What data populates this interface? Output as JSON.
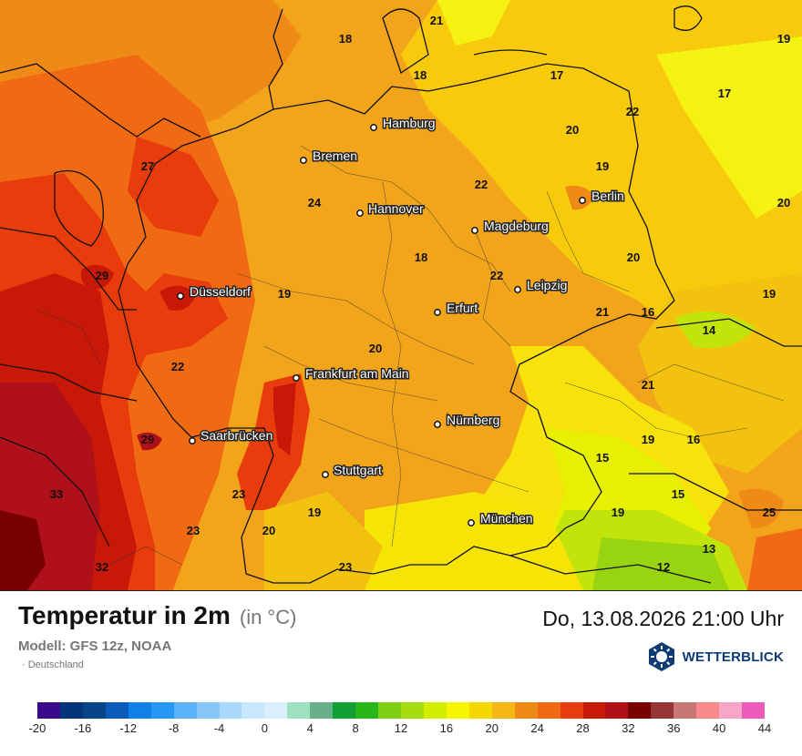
{
  "title": "Temperatur in 2m",
  "unit": "(in °C)",
  "model": "Modell: GFS 12z, NOAA",
  "region": "Deutschland",
  "datetime": "Do, 13.08.2026 21:00 Uhr",
  "brand": "WETTERBLICK",
  "cities": [
    {
      "name": "Hamburg"
    },
    {
      "name": "Bremen"
    },
    {
      "name": "Hannover"
    },
    {
      "name": "Berlin"
    },
    {
      "name": "Magdeburg"
    },
    {
      "name": "Leipzig"
    },
    {
      "name": "Düsseldorf"
    },
    {
      "name": "Erfurt"
    },
    {
      "name": "Frankfurt am Main"
    },
    {
      "name": "Nürnberg"
    },
    {
      "name": "Saarbrücken"
    },
    {
      "name": "Stuttgart"
    },
    {
      "name": "München"
    }
  ],
  "temperatures": [
    "21",
    "18",
    "19",
    "18",
    "17",
    "17",
    "22",
    "20",
    "19",
    "27",
    "24",
    "22",
    "20",
    "29",
    "19",
    "18",
    "22",
    "20",
    "19",
    "21",
    "16",
    "14",
    "20",
    "22",
    "21",
    "29",
    "19",
    "16",
    "15",
    "33",
    "23",
    "19",
    "15",
    "25",
    "23",
    "20",
    "19",
    "13",
    "32",
    "23",
    "12"
  ],
  "scale": {
    "colors": [
      "#3a0a8c",
      "#06347a",
      "#0a4488",
      "#0a5cb8",
      "#1180e6",
      "#2797f5",
      "#5cb2f7",
      "#86c6f8",
      "#a9d8fb",
      "#c8e6fc",
      "#dcedfc",
      "#9ee0c0",
      "#68b08a",
      "#12a034",
      "#28b61a",
      "#7fcf12",
      "#a7dc0c",
      "#d2ee00",
      "#f6f600",
      "#f6d800",
      "#f3b612",
      "#f08a16",
      "#f06a14",
      "#e83c0c",
      "#c81808",
      "#b0101a",
      "#780000",
      "#963535",
      "#c87676",
      "#f68a8a",
      "#f8a6c8",
      "#ee5ab8"
    ],
    "labels": [
      "-20",
      "-16",
      "-12",
      "-8",
      "-4",
      "0",
      "4",
      "8",
      "12",
      "16",
      "20",
      "24",
      "28",
      "32",
      "36",
      "40",
      "44"
    ]
  }
}
